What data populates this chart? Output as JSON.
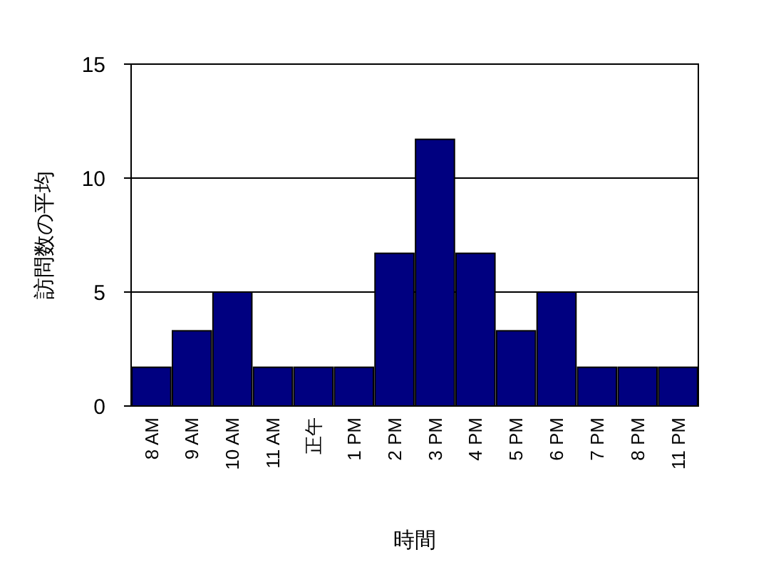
{
  "chart_data": {
    "type": "bar",
    "xlabel": "時間",
    "ylabel": "訪問数の平均",
    "categories": [
      "8 AM",
      "9 AM",
      "10 AM",
      "11 AM",
      "正午",
      "1 PM",
      "2 PM",
      "3 PM",
      "4 PM",
      "5 PM",
      "6 PM",
      "7 PM",
      "8 PM",
      "11 PM"
    ],
    "values": [
      1.7,
      3.3,
      5,
      1.7,
      1.7,
      1.7,
      6.7,
      11.7,
      6.7,
      3.3,
      5,
      1.7,
      1.7,
      1.7
    ],
    "color": "#000080",
    "ylim": [
      0,
      15
    ],
    "yticks": [
      0,
      5,
      10,
      15
    ],
    "grid": "y"
  }
}
